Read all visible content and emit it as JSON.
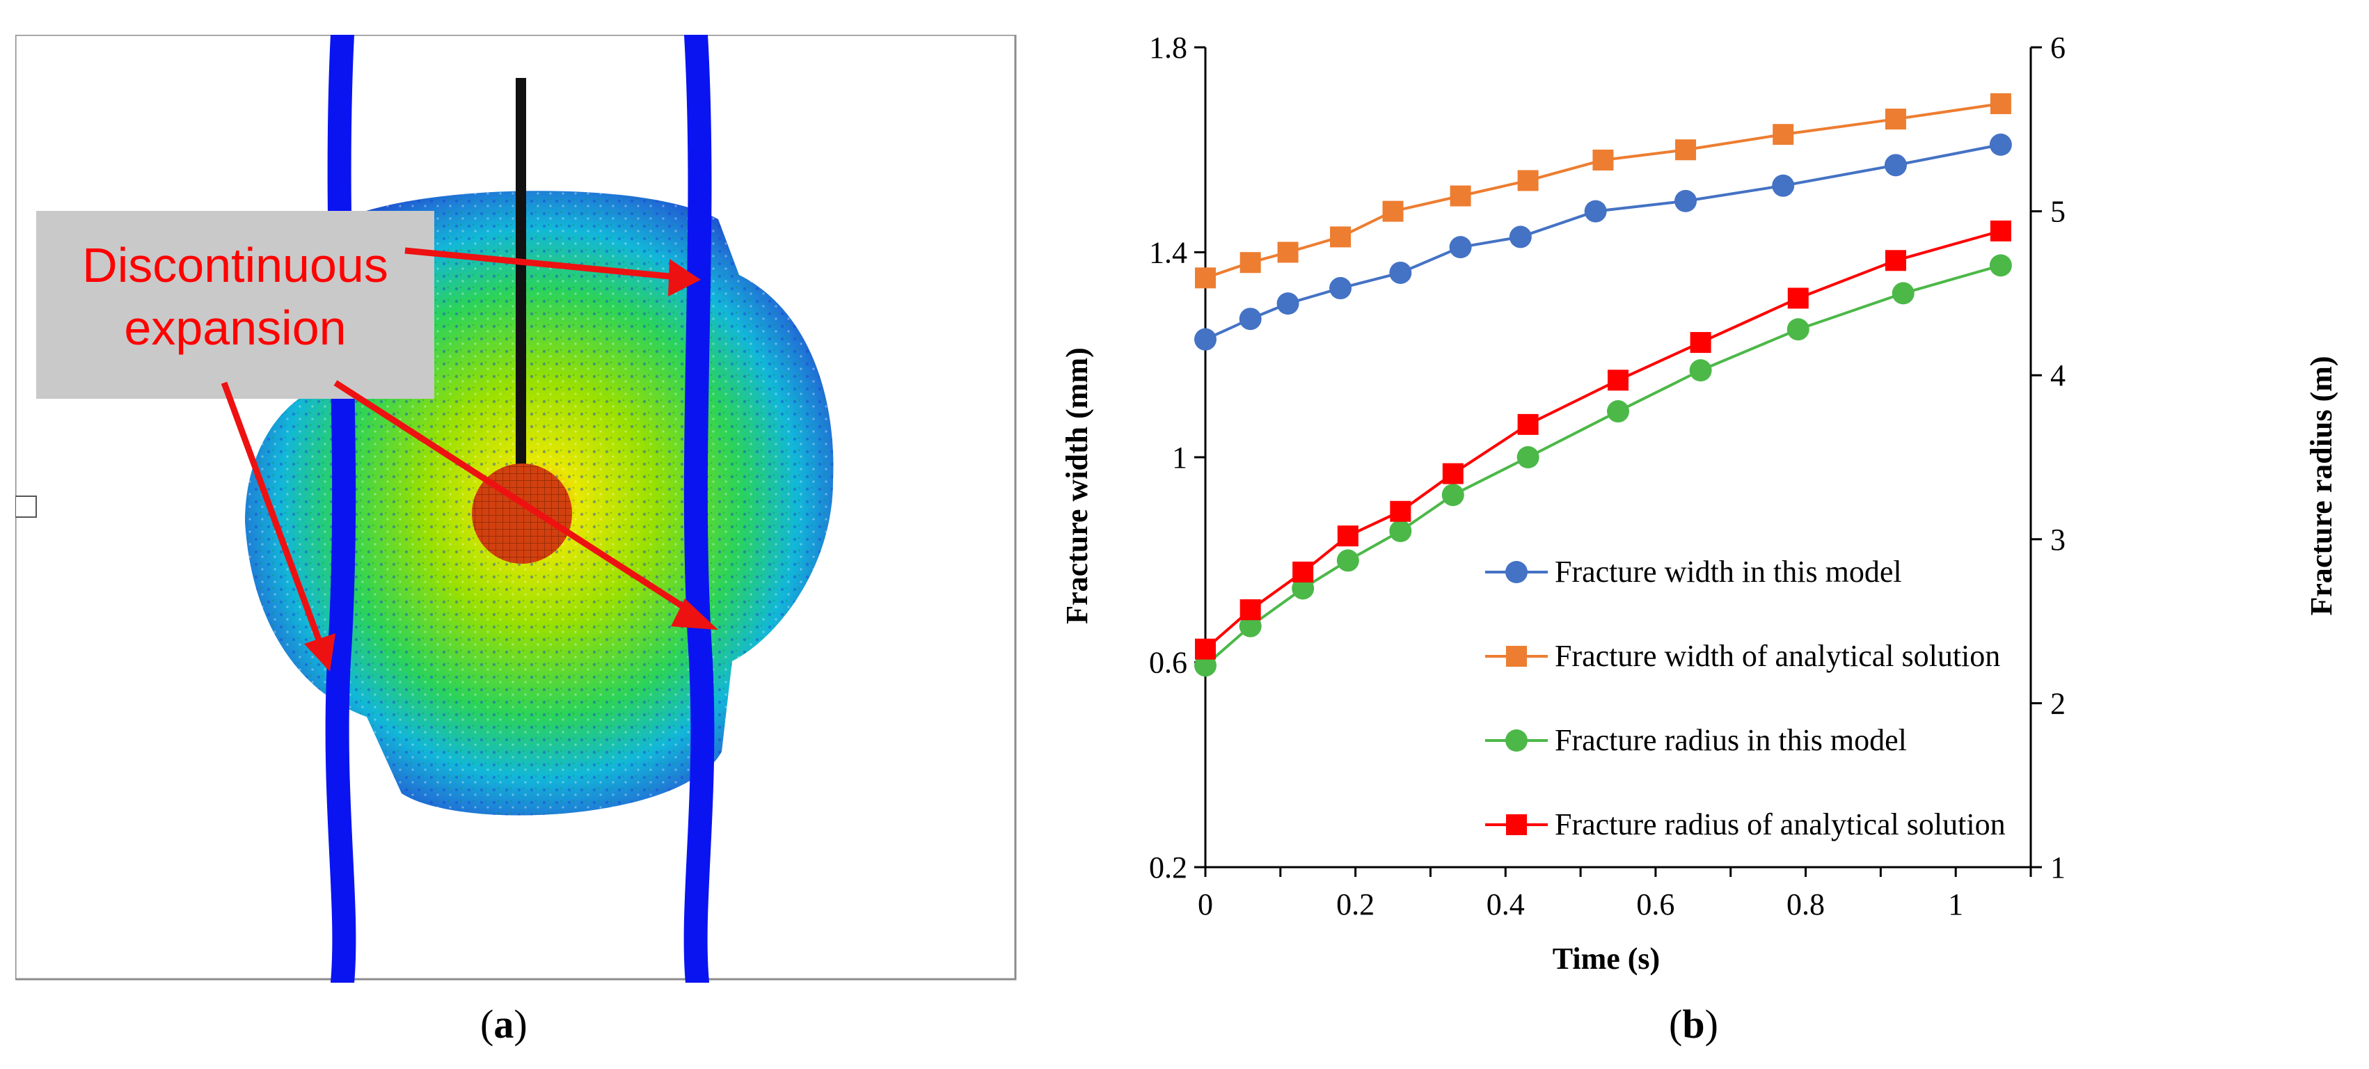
{
  "panel_a": {
    "annotation_line1": "Discontinuous",
    "annotation_line2": "expansion",
    "caption_letter": "a"
  },
  "panel_b": {
    "caption_letter": "b"
  },
  "colors": {
    "width_model": "#4472C4",
    "width_analytical": "#ED7D31",
    "radius_model": "#4CB848",
    "radius_analytical": "#FF0000",
    "annotation": "#FF0000",
    "fracture_lines": "#0000FF"
  },
  "chart_data": {
    "type": "line",
    "title": "",
    "xlabel": "Time (s)",
    "ylabel": "Fracture width (mm)",
    "y2label": "Fracture radius (m)",
    "xlim": [
      0,
      1.1
    ],
    "ylim": [
      0.2,
      1.8
    ],
    "y2lim": [
      1,
      6
    ],
    "xticks": [
      "0",
      "0.2",
      "0.4",
      "0.6",
      "0.8",
      "1"
    ],
    "yticks": [
      "0.2",
      "0.6",
      "1",
      "1.4",
      "1.8"
    ],
    "y2ticks": [
      "1",
      "2",
      "3",
      "4",
      "5",
      "6"
    ],
    "legend_position": "lower-right",
    "series": [
      {
        "name": "Fracture width in this model",
        "axis": "left",
        "marker": "circle",
        "color": "#4472C4",
        "x": [
          0,
          0.06,
          0.11,
          0.18,
          0.26,
          0.34,
          0.42,
          0.52,
          0.64,
          0.77,
          0.92,
          1.06
        ],
        "y": [
          1.23,
          1.27,
          1.3,
          1.33,
          1.36,
          1.41,
          1.43,
          1.48,
          1.5,
          1.53,
          1.57,
          1.61
        ]
      },
      {
        "name": "Fracture width of analytical solution",
        "axis": "left",
        "marker": "square",
        "color": "#ED7D31",
        "x": [
          0,
          0.06,
          0.11,
          0.18,
          0.25,
          0.34,
          0.43,
          0.53,
          0.64,
          0.77,
          0.92,
          1.06
        ],
        "y": [
          1.35,
          1.38,
          1.4,
          1.43,
          1.48,
          1.51,
          1.54,
          1.58,
          1.6,
          1.63,
          1.66,
          1.69
        ]
      },
      {
        "name": "Fracture radius in this model",
        "axis": "right",
        "marker": "circle",
        "color": "#4CB848",
        "x": [
          0,
          0.06,
          0.13,
          0.19,
          0.26,
          0.33,
          0.43,
          0.55,
          0.66,
          0.79,
          0.93,
          1.06
        ],
        "y": [
          2.23,
          2.47,
          2.7,
          2.87,
          3.05,
          3.27,
          3.5,
          3.78,
          4.03,
          4.28,
          4.5,
          4.67
        ]
      },
      {
        "name": "Fracture radius of analytical solution",
        "axis": "right",
        "marker": "square",
        "color": "#FF0000",
        "x": [
          0,
          0.06,
          0.13,
          0.19,
          0.26,
          0.33,
          0.43,
          0.55,
          0.66,
          0.79,
          0.92,
          1.06
        ],
        "y": [
          2.33,
          2.57,
          2.8,
          3.02,
          3.17,
          3.4,
          3.7,
          3.97,
          4.2,
          4.47,
          4.7,
          4.88
        ]
      }
    ]
  }
}
